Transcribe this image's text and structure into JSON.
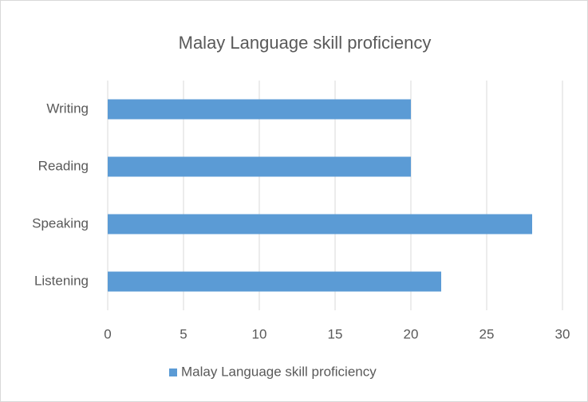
{
  "chart_data": {
    "type": "hbar",
    "title": "Malay Language skill proficiency",
    "categories": [
      "Listening",
      "Speaking",
      "Reading",
      "Writing"
    ],
    "series": [
      {
        "name": "Malay Language skill proficiency",
        "color": "#5b9bd5",
        "values": [
          22,
          28,
          20,
          20
        ]
      }
    ],
    "xlim": [
      0,
      30
    ],
    "xticks": [
      0,
      5,
      10,
      15,
      20,
      25,
      30
    ],
    "grid": true,
    "legend": "bottom"
  }
}
